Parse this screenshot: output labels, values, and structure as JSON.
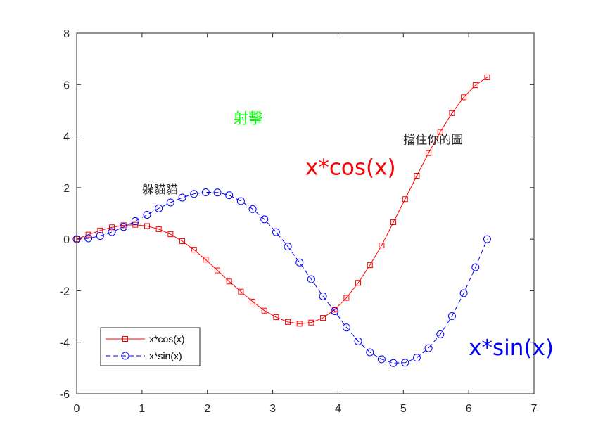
{
  "chart_data": {
    "type": "line",
    "xlim": [
      0,
      7
    ],
    "ylim": [
      -6,
      8
    ],
    "xticks": [
      0,
      1,
      2,
      3,
      4,
      5,
      6,
      7
    ],
    "yticks": [
      -6,
      -4,
      -2,
      0,
      2,
      4,
      6,
      8
    ],
    "xtick_labels": [
      "0",
      "1",
      "2",
      "3",
      "4",
      "5",
      "6",
      "7"
    ],
    "ytick_labels": [
      "-6",
      "-4",
      "-2",
      "0",
      "2",
      "4",
      "6",
      "8"
    ],
    "grid": false,
    "legend_position": "bottom-left",
    "series": [
      {
        "name": "x*cos(x)",
        "color": "#ff0000",
        "line_style": "solid",
        "marker": "square",
        "x": [
          0,
          0.1795,
          0.359,
          0.5386,
          0.7181,
          0.8976,
          1.0771,
          1.2566,
          1.4362,
          1.6157,
          1.7952,
          1.9747,
          2.1542,
          2.3338,
          2.5133,
          2.6928,
          2.8723,
          3.0518,
          3.2314,
          3.4109,
          3.5904,
          3.7699,
          3.9494,
          4.129,
          4.3085,
          4.488,
          4.6675,
          4.847,
          5.0265,
          5.2061,
          5.3856,
          5.5651,
          5.7446,
          5.9241,
          6.1037,
          6.2832
        ],
        "y": [
          0,
          0.1766,
          0.336,
          0.4613,
          0.5396,
          0.5589,
          0.5101,
          0.3883,
          0.1918,
          -0.0772,
          -0.4101,
          -0.7929,
          -1.2112,
          -1.6412,
          -2.0333,
          -2.4208,
          -2.7712,
          -3.0274,
          -3.2118,
          -3.2819,
          -3.2361,
          -3.0548,
          -2.7334,
          -2.2761,
          -1.6949,
          -1.0088,
          -0.2437,
          0.6561,
          1.5531,
          2.4602,
          3.3415,
          4.1634,
          4.8949,
          5.5079,
          5.9777,
          6.2832
        ]
      },
      {
        "name": "x*sin(x)",
        "color": "#0000ff",
        "line_style": "dashed",
        "marker": "circle",
        "x": [
          0,
          0.1795,
          0.359,
          0.5386,
          0.7181,
          0.8976,
          1.0771,
          1.2566,
          1.4362,
          1.6157,
          1.7952,
          1.9747,
          2.1542,
          2.3338,
          2.5133,
          2.6928,
          2.8723,
          3.0518,
          3.2314,
          3.4109,
          3.5904,
          3.7699,
          3.9494,
          4.129,
          4.3085,
          4.488,
          4.6675,
          4.847,
          5.0265,
          5.2061,
          5.3856,
          5.5651,
          5.7446,
          5.9241,
          6.1037,
          6.2832
        ],
        "y": [
          0,
          0.032,
          0.126,
          0.2765,
          0.473,
          0.7017,
          0.9468,
          1.1951,
          1.4238,
          1.6125,
          1.7564,
          1.8198,
          1.8127,
          1.7075,
          1.4773,
          1.168,
          0.7719,
          0.2743,
          -0.2867,
          -0.9034,
          -1.5523,
          -2.2156,
          -2.7919,
          -3.427,
          -3.9618,
          -4.3889,
          -4.6604,
          -4.8072,
          -4.7908,
          -4.5986,
          -4.2284,
          -3.6912,
          -2.9855,
          -2.0958,
          -1.0872,
          0
        ]
      }
    ],
    "annotations": [
      {
        "text": "躲貓貓",
        "x": 1.0,
        "y": 1.78,
        "color": "#262626",
        "size": "small"
      },
      {
        "text": "射擊",
        "x": 2.4,
        "y": 4.5,
        "color": "#00ff00",
        "size": "medium"
      },
      {
        "text": "擋住你的圖",
        "x": 5.0,
        "y": 3.7,
        "color": "#262626",
        "size": "small"
      },
      {
        "text": "x*cos(x)",
        "x": 3.5,
        "y": 2.5,
        "color": "#ff0000",
        "size": "large"
      },
      {
        "text": "x*sin(x)",
        "x": 6.0,
        "y": -4.5,
        "color": "#0000ff",
        "size": "large"
      }
    ]
  }
}
